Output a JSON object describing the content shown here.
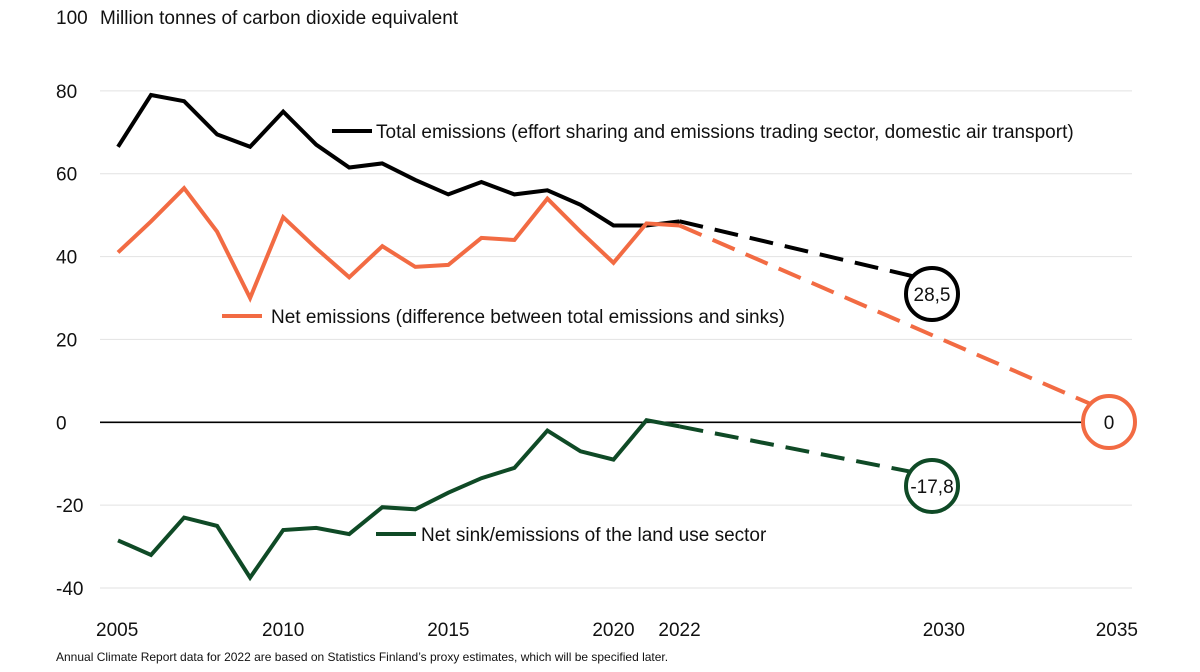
{
  "chart_data": {
    "type": "line",
    "ylabel": "Million tonnes of carbon dioxide equivalent",
    "ylim": [
      -40,
      100
    ],
    "yticks": [
      "100",
      "80",
      "60",
      "40",
      "20",
      "0",
      "-20",
      "-40"
    ],
    "xticks": [
      "2005",
      "2010",
      "2015",
      "2020",
      "2022",
      "2030",
      "2035"
    ],
    "grid": true,
    "series": [
      {
        "name": "Total emissions (effort sharing and emissions trading sector, domestic air transport)",
        "color": "#000000",
        "x": [
          2005,
          2006,
          2007,
          2008,
          2009,
          2010,
          2011,
          2012,
          2013,
          2014,
          2015,
          2016,
          2017,
          2018,
          2019,
          2020,
          2021,
          2022
        ],
        "values": [
          66.5,
          79,
          77.5,
          69.5,
          66.5,
          75,
          67,
          61.5,
          62.5,
          58.5,
          55,
          58,
          55,
          56,
          52.5,
          47.5,
          47.5,
          48.5
        ],
        "projection": {
          "x": [
            2022,
            2030
          ],
          "values": [
            48.5,
            33.5
          ]
        },
        "target_label": "28,5"
      },
      {
        "name": "Net emissions (difference between total emissions and sinks)",
        "color": "#f26b43",
        "x": [
          2005,
          2006,
          2007,
          2008,
          2009,
          2010,
          2011,
          2012,
          2013,
          2014,
          2015,
          2016,
          2017,
          2018,
          2019,
          2020,
          2021,
          2022
        ],
        "values": [
          41,
          48.5,
          56.5,
          46,
          30,
          49.5,
          42,
          35,
          42.5,
          37.5,
          38,
          44.5,
          44,
          54,
          46,
          38.5,
          48,
          47.5
        ],
        "projection": {
          "x": [
            2022,
            2035
          ],
          "values": [
            47.5,
            2.5
          ]
        },
        "target_label": "0"
      },
      {
        "name": "Net sink/emissions of the land use sector",
        "color": "#0f4a26",
        "x": [
          2005,
          2006,
          2007,
          2008,
          2009,
          2010,
          2011,
          2012,
          2013,
          2014,
          2015,
          2016,
          2017,
          2018,
          2019,
          2020,
          2021,
          2022
        ],
        "values": [
          -28.5,
          -32,
          -23,
          -25,
          -37.5,
          -26,
          -25.5,
          -27,
          -20.5,
          -21,
          -17,
          -13.5,
          -11,
          -2,
          -7,
          -9,
          0.5,
          -1
        ],
        "projection": {
          "x": [
            2022,
            2030
          ],
          "values": [
            -1,
            -13.5
          ]
        },
        "target_label": "-17,8"
      }
    ],
    "note": "Annual Climate Report data for 2022 are based on Statistics Finland’s proxy estimates, which will be specified later."
  }
}
